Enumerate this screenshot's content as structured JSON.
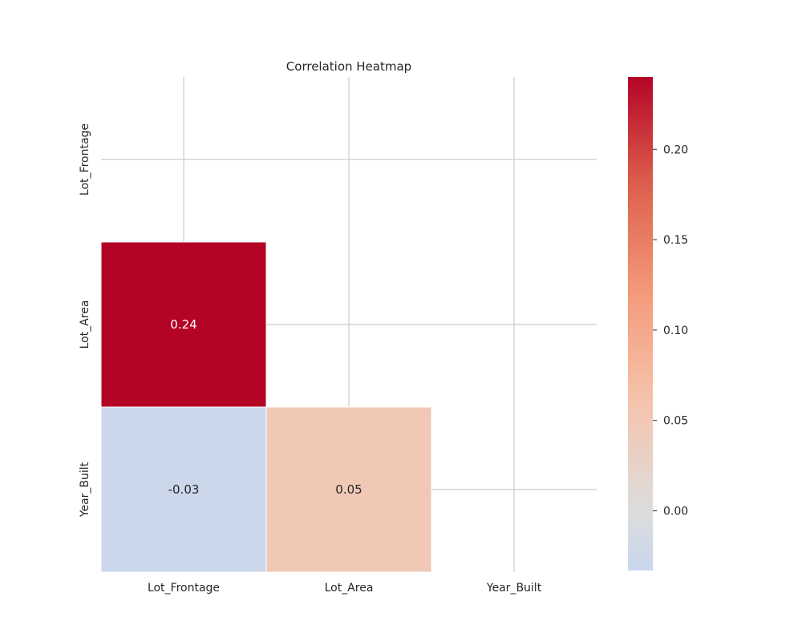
{
  "chart_data": {
    "type": "heatmap",
    "title": "Correlation Heatmap",
    "x_labels": [
      "Lot_Frontage",
      "Lot_Area",
      "Year_Built"
    ],
    "y_labels": [
      "Lot_Frontage",
      "Lot_Area",
      "Year_Built"
    ],
    "mask": "upper-triangle-including-diagonal",
    "cells": [
      {
        "row": 1,
        "col": 0,
        "value": 0.24,
        "label": "0.24"
      },
      {
        "row": 2,
        "col": 0,
        "value": -0.03,
        "label": "-0.03"
      },
      {
        "row": 2,
        "col": 1,
        "value": 0.05,
        "label": "0.05"
      }
    ],
    "colorbar": {
      "vmin": -0.033,
      "vmax": 0.24,
      "ticks": [
        0.0,
        0.05,
        0.1,
        0.15,
        0.2
      ],
      "tick_labels": [
        "0.00",
        "0.05",
        "0.10",
        "0.15",
        "0.20"
      ],
      "colormap": "coolwarm"
    },
    "grid": true
  }
}
